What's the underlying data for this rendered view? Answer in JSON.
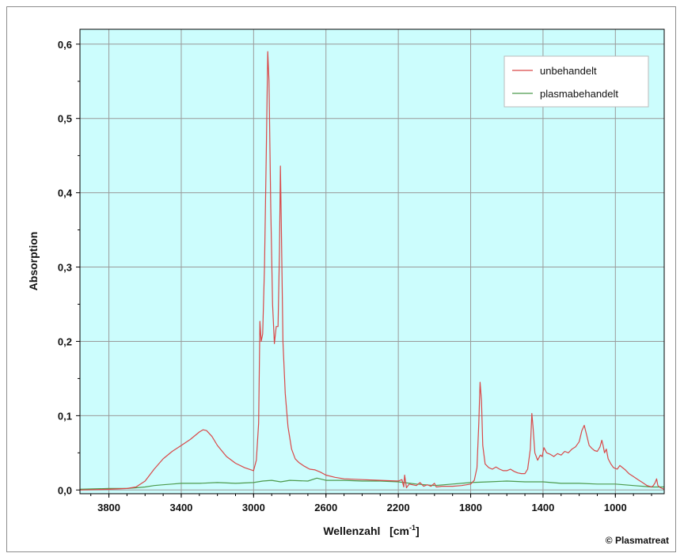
{
  "chart_data": {
    "type": "line",
    "title": "",
    "xlabel": "Wellenzahl   [cm",
    "xlabel_sup": "-1",
    "xlabel_close": "]",
    "ylabel": "Absorption",
    "xlim": [
      3960,
      730
    ],
    "ylim": [
      -0.005,
      0.62
    ],
    "x_ticks": [
      "3800",
      "3400",
      "3000",
      "2600",
      "2200",
      "1800",
      "1400",
      "1000"
    ],
    "x_tick_values": [
      3800,
      3400,
      3000,
      2600,
      2200,
      1800,
      1400,
      1000
    ],
    "y_ticks": [
      "0,0",
      "0,1",
      "0,2",
      "0,3",
      "0,4",
      "0,5",
      "0,6"
    ],
    "y_tick_values": [
      0,
      0.1,
      0.2,
      0.3,
      0.4,
      0.5,
      0.6
    ],
    "grid": true,
    "plot_background": "#ccfdfd",
    "legend_position": "top-right",
    "series": [
      {
        "name": "unbehandelt",
        "color": "#d94848",
        "points": [
          [
            3960,
            0.0
          ],
          [
            3800,
            0.001
          ],
          [
            3700,
            0.002
          ],
          [
            3650,
            0.004
          ],
          [
            3600,
            0.012
          ],
          [
            3550,
            0.028
          ],
          [
            3500,
            0.042
          ],
          [
            3450,
            0.052
          ],
          [
            3400,
            0.06
          ],
          [
            3350,
            0.068
          ],
          [
            3300,
            0.078
          ],
          [
            3280,
            0.081
          ],
          [
            3260,
            0.08
          ],
          [
            3230,
            0.072
          ],
          [
            3200,
            0.06
          ],
          [
            3150,
            0.045
          ],
          [
            3100,
            0.036
          ],
          [
            3050,
            0.03
          ],
          [
            3000,
            0.026
          ],
          [
            2985,
            0.04
          ],
          [
            2972,
            0.09
          ],
          [
            2965,
            0.227
          ],
          [
            2958,
            0.2
          ],
          [
            2950,
            0.21
          ],
          [
            2940,
            0.3
          ],
          [
            2930,
            0.45
          ],
          [
            2922,
            0.59
          ],
          [
            2915,
            0.55
          ],
          [
            2905,
            0.38
          ],
          [
            2895,
            0.25
          ],
          [
            2885,
            0.197
          ],
          [
            2875,
            0.22
          ],
          [
            2865,
            0.22
          ],
          [
            2857,
            0.32
          ],
          [
            2852,
            0.436
          ],
          [
            2847,
            0.36
          ],
          [
            2838,
            0.2
          ],
          [
            2825,
            0.13
          ],
          [
            2810,
            0.085
          ],
          [
            2790,
            0.055
          ],
          [
            2770,
            0.042
          ],
          [
            2750,
            0.037
          ],
          [
            2720,
            0.032
          ],
          [
            2690,
            0.028
          ],
          [
            2660,
            0.027
          ],
          [
            2630,
            0.024
          ],
          [
            2600,
            0.02
          ],
          [
            2550,
            0.017
          ],
          [
            2500,
            0.015
          ],
          [
            2400,
            0.014
          ],
          [
            2300,
            0.013
          ],
          [
            2200,
            0.012
          ],
          [
            2180,
            0.014
          ],
          [
            2170,
            0.004
          ],
          [
            2165,
            0.02
          ],
          [
            2155,
            0.003
          ],
          [
            2140,
            0.008
          ],
          [
            2100,
            0.006
          ],
          [
            2080,
            0.01
          ],
          [
            2060,
            0.005
          ],
          [
            2040,
            0.007
          ],
          [
            2020,
            0.005
          ],
          [
            2000,
            0.009
          ],
          [
            1990,
            0.004
          ],
          [
            1960,
            0.005
          ],
          [
            1900,
            0.005
          ],
          [
            1850,
            0.006
          ],
          [
            1800,
            0.008
          ],
          [
            1780,
            0.013
          ],
          [
            1765,
            0.03
          ],
          [
            1755,
            0.09
          ],
          [
            1748,
            0.145
          ],
          [
            1740,
            0.12
          ],
          [
            1733,
            0.06
          ],
          [
            1720,
            0.035
          ],
          [
            1700,
            0.03
          ],
          [
            1680,
            0.028
          ],
          [
            1660,
            0.031
          ],
          [
            1640,
            0.028
          ],
          [
            1620,
            0.026
          ],
          [
            1600,
            0.026
          ],
          [
            1580,
            0.028
          ],
          [
            1560,
            0.025
          ],
          [
            1540,
            0.023
          ],
          [
            1520,
            0.022
          ],
          [
            1500,
            0.022
          ],
          [
            1485,
            0.028
          ],
          [
            1470,
            0.055
          ],
          [
            1462,
            0.103
          ],
          [
            1455,
            0.085
          ],
          [
            1445,
            0.05
          ],
          [
            1430,
            0.04
          ],
          [
            1415,
            0.047
          ],
          [
            1405,
            0.045
          ],
          [
            1395,
            0.057
          ],
          [
            1380,
            0.05
          ],
          [
            1360,
            0.048
          ],
          [
            1340,
            0.045
          ],
          [
            1320,
            0.049
          ],
          [
            1300,
            0.047
          ],
          [
            1280,
            0.052
          ],
          [
            1260,
            0.05
          ],
          [
            1240,
            0.055
          ],
          [
            1220,
            0.058
          ],
          [
            1200,
            0.065
          ],
          [
            1185,
            0.08
          ],
          [
            1172,
            0.087
          ],
          [
            1160,
            0.075
          ],
          [
            1145,
            0.06
          ],
          [
            1130,
            0.056
          ],
          [
            1115,
            0.053
          ],
          [
            1100,
            0.052
          ],
          [
            1085,
            0.058
          ],
          [
            1075,
            0.067
          ],
          [
            1068,
            0.06
          ],
          [
            1060,
            0.05
          ],
          [
            1050,
            0.055
          ],
          [
            1040,
            0.042
          ],
          [
            1025,
            0.035
          ],
          [
            1010,
            0.03
          ],
          [
            990,
            0.028
          ],
          [
            975,
            0.033
          ],
          [
            960,
            0.03
          ],
          [
            945,
            0.027
          ],
          [
            925,
            0.022
          ],
          [
            900,
            0.018
          ],
          [
            875,
            0.014
          ],
          [
            850,
            0.01
          ],
          [
            825,
            0.006
          ],
          [
            800,
            0.004
          ],
          [
            790,
            0.006
          ],
          [
            780,
            0.01
          ],
          [
            772,
            0.015
          ],
          [
            765,
            0.006
          ],
          [
            750,
            0.003
          ],
          [
            730,
            0.001
          ]
        ]
      },
      {
        "name": "plasmabehandelt",
        "color": "#4c9a4c",
        "points": [
          [
            3960,
            0.001
          ],
          [
            3800,
            0.002
          ],
          [
            3700,
            0.002
          ],
          [
            3650,
            0.003
          ],
          [
            3600,
            0.004
          ],
          [
            3550,
            0.006
          ],
          [
            3500,
            0.007
          ],
          [
            3450,
            0.008
          ],
          [
            3400,
            0.009
          ],
          [
            3300,
            0.009
          ],
          [
            3200,
            0.01
          ],
          [
            3100,
            0.009
          ],
          [
            3000,
            0.01
          ],
          [
            2950,
            0.012
          ],
          [
            2900,
            0.013
          ],
          [
            2850,
            0.011
          ],
          [
            2800,
            0.013
          ],
          [
            2700,
            0.012
          ],
          [
            2650,
            0.016
          ],
          [
            2600,
            0.013
          ],
          [
            2500,
            0.013
          ],
          [
            2400,
            0.012
          ],
          [
            2300,
            0.012
          ],
          [
            2200,
            0.011
          ],
          [
            2100,
            0.008
          ],
          [
            2000,
            0.006
          ],
          [
            1900,
            0.008
          ],
          [
            1800,
            0.01
          ],
          [
            1700,
            0.011
          ],
          [
            1600,
            0.012
          ],
          [
            1500,
            0.011
          ],
          [
            1400,
            0.011
          ],
          [
            1300,
            0.009
          ],
          [
            1200,
            0.009
          ],
          [
            1100,
            0.008
          ],
          [
            1000,
            0.008
          ],
          [
            900,
            0.006
          ],
          [
            800,
            0.004
          ],
          [
            730,
            0.004
          ]
        ]
      }
    ]
  },
  "copyright": "© Plasmatreat"
}
